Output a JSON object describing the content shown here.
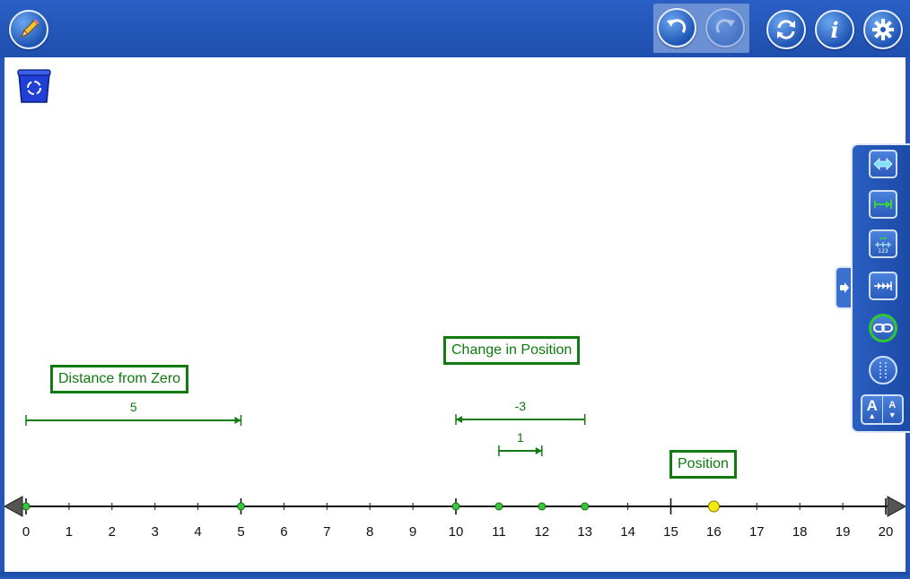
{
  "toolbar": {
    "left_tool_icon": "pencil-icon",
    "undo_icon": "undo-icon",
    "redo_icon": "redo-icon",
    "reset_icon": "refresh-icon",
    "info_icon": "info-icon",
    "settings_icon": "gear-icon",
    "info_glyph": "i"
  },
  "canvas": {
    "trash_icon": "recycle-bin-icon"
  },
  "labels": {
    "distance_from_zero": "Distance from Zero",
    "change_in_position": "Change in Position",
    "position": "Position"
  },
  "arrows": [
    {
      "label": "5",
      "from": 0,
      "to": 5
    },
    {
      "label": "-3",
      "from": 13,
      "to": 10
    },
    {
      "label": "1",
      "from": 11,
      "to": 12
    }
  ],
  "number_line": {
    "min": 0,
    "max": 20,
    "tick_labels": [
      "0",
      "1",
      "2",
      "3",
      "4",
      "5",
      "6",
      "7",
      "8",
      "9",
      "10",
      "11",
      "12",
      "13",
      "14",
      "15",
      "16",
      "17",
      "18",
      "19",
      "20"
    ],
    "green_points": [
      0,
      5,
      10,
      11,
      12,
      13
    ],
    "highlight_point": 16,
    "major_ticks": [
      0,
      5,
      10,
      15,
      20
    ]
  },
  "side_panel": {
    "buttons": [
      "double-arrow-icon",
      "jump-arrow-icon",
      "number-grid-icon",
      "skip-arrows-icon",
      "link-icon",
      "dashed-lines-icon",
      "font-size-icon"
    ],
    "font_large": "A",
    "font_small": "A",
    "link_active_color": "#2ec92e"
  },
  "colors": {
    "accent_blue": "#2356b8",
    "label_green": "#117a11",
    "point_yellow": "#f5e90c"
  }
}
